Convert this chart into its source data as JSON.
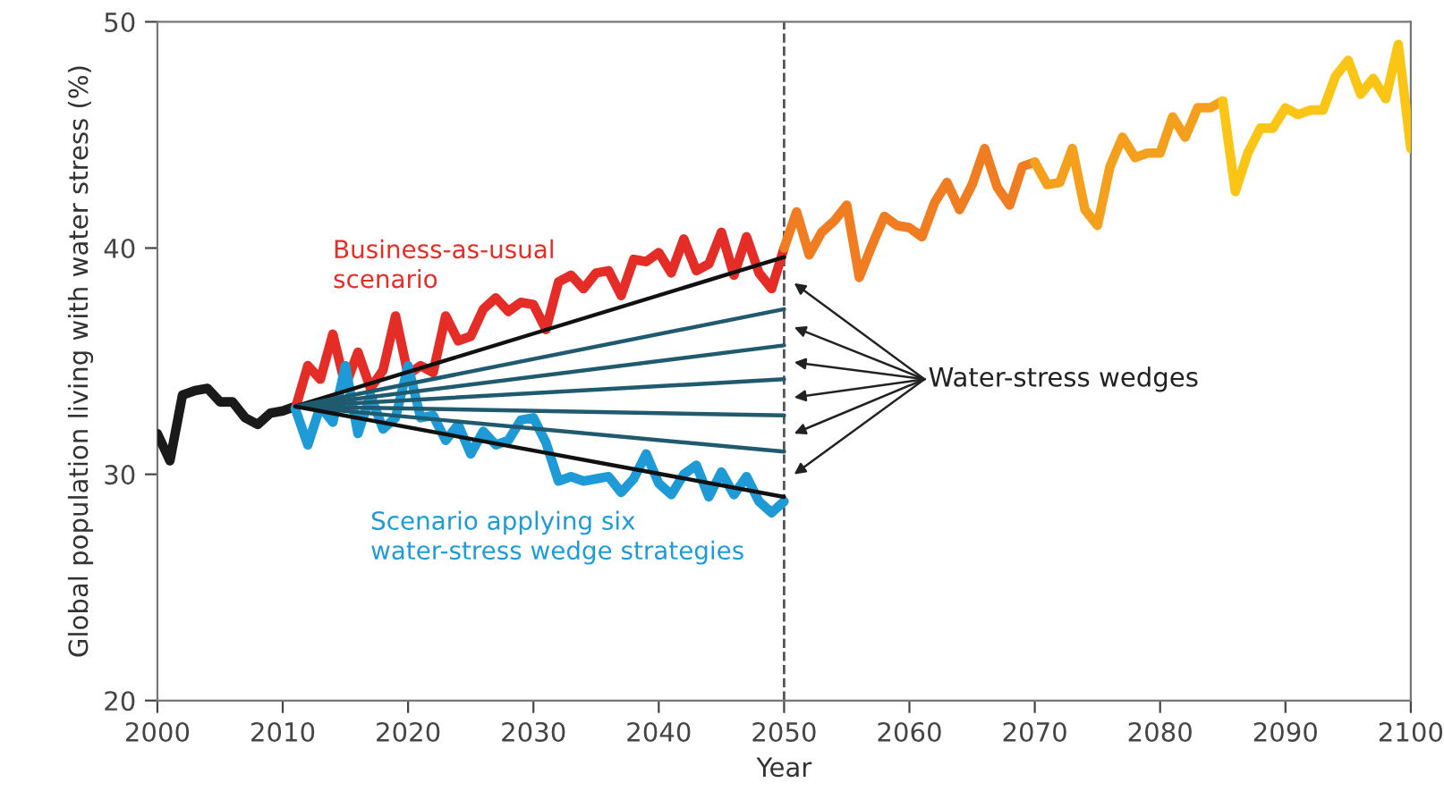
{
  "chart_data": {
    "type": "line",
    "xlabel": "Year",
    "ylabel": "Global population living with water stress (%)",
    "xlim": [
      2000,
      2100
    ],
    "ylim": [
      20,
      50
    ],
    "xticks": [
      2000,
      2010,
      2020,
      2030,
      2040,
      2050,
      2060,
      2070,
      2080,
      2090,
      2100
    ],
    "yticks": [
      20,
      30,
      40,
      50
    ],
    "grid": false,
    "legend": false,
    "marker": "none",
    "line_style": "solid",
    "ref_lines": [
      {
        "axis": "x",
        "value": 2050,
        "color": "#555555",
        "line_style": "dashed"
      }
    ],
    "annotations": [
      "Water-stress wedges"
    ],
    "series": [
      {
        "color": "#1a1a1a",
        "x": [
          2000,
          2001,
          2002,
          2003,
          2004,
          2005,
          2006,
          2007,
          2008,
          2009,
          2010,
          2011
        ],
        "values": [
          31.8,
          30.6,
          33.5,
          33.7,
          33.8,
          33.2,
          33.2,
          32.5,
          32.2,
          32.7,
          32.8,
          33.0
        ]
      },
      {
        "name": "Business-as-usual\nscenario",
        "color": "#e52d27",
        "x": [
          2011,
          2012,
          2013,
          2014,
          2015,
          2016,
          2017,
          2018,
          2019,
          2020,
          2021,
          2022,
          2023,
          2024,
          2025,
          2026,
          2027,
          2028,
          2029,
          2030,
          2031,
          2032,
          2033,
          2034,
          2035,
          2036,
          2037,
          2038,
          2039,
          2040,
          2041,
          2042,
          2043,
          2044,
          2045,
          2046,
          2047,
          2048,
          2049,
          2050
        ],
        "values": [
          32.9,
          34.8,
          34.2,
          36.2,
          33.9,
          35.4,
          33.8,
          34.6,
          37.0,
          34.4,
          34.8,
          34.5,
          37.0,
          35.9,
          36.1,
          37.3,
          37.8,
          37.2,
          37.6,
          37.5,
          36.4,
          38.5,
          38.8,
          38.2,
          38.9,
          39.0,
          37.9,
          39.5,
          39.4,
          39.8,
          38.9,
          40.4,
          39.0,
          39.3,
          40.7,
          38.8,
          40.5,
          38.9,
          38.2,
          40.0
        ]
      },
      {
        "color": "#f07d22",
        "x": [
          2050,
          2051,
          2052,
          2053,
          2054,
          2055,
          2056,
          2057,
          2058,
          2059,
          2060,
          2061,
          2062,
          2063,
          2064,
          2065,
          2066,
          2067,
          2068,
          2069,
          2070
        ],
        "values": [
          40.0,
          41.6,
          39.7,
          40.7,
          41.2,
          41.9,
          38.7,
          40.1,
          41.4,
          41.0,
          40.9,
          40.5,
          42.0,
          42.9,
          41.7,
          42.8,
          44.4,
          42.7,
          41.9,
          43.6,
          43.8
        ]
      },
      {
        "color": "#f5a01d",
        "x": [
          2070,
          2071,
          2072,
          2073,
          2074,
          2075,
          2076,
          2077,
          2078,
          2079,
          2080,
          2081,
          2082,
          2083,
          2084,
          2085
        ],
        "values": [
          43.8,
          42.8,
          42.9,
          44.4,
          41.7,
          41.0,
          43.6,
          44.9,
          44.0,
          44.2,
          44.2,
          45.8,
          44.9,
          46.2,
          46.2,
          46.5
        ]
      },
      {
        "color": "#fbc515",
        "x": [
          2085,
          2086,
          2087,
          2088,
          2089,
          2090,
          2091,
          2092,
          2093,
          2094,
          2095,
          2096,
          2097,
          2098,
          2099,
          2100
        ],
        "values": [
          46.5,
          42.5,
          44.2,
          45.3,
          45.3,
          46.2,
          45.9,
          46.1,
          46.1,
          47.6,
          48.3,
          46.8,
          47.5,
          46.6,
          49.0,
          44.4
        ]
      },
      {
        "name": "Scenario applying six\nwater-stress wedge strategies",
        "color": "#1e9bd7",
        "x": [
          2011,
          2012,
          2013,
          2014,
          2015,
          2016,
          2017,
          2018,
          2019,
          2020,
          2021,
          2022,
          2023,
          2024,
          2025,
          2026,
          2027,
          2028,
          2029,
          2030,
          2031,
          2032,
          2033,
          2034,
          2035,
          2036,
          2037,
          2038,
          2039,
          2040,
          2041,
          2042,
          2043,
          2044,
          2045,
          2046,
          2047,
          2048,
          2049,
          2050
        ],
        "values": [
          32.9,
          31.3,
          33.0,
          32.3,
          34.8,
          31.8,
          33.5,
          32.0,
          32.5,
          34.8,
          32.5,
          32.6,
          31.5,
          32.2,
          30.9,
          31.9,
          31.3,
          31.5,
          32.4,
          32.5,
          31.4,
          29.7,
          29.9,
          29.7,
          29.8,
          29.9,
          29.2,
          29.8,
          30.9,
          29.6,
          29.1,
          30.0,
          30.4,
          29.0,
          30.1,
          29.1,
          29.9,
          28.8,
          28.3,
          28.8
        ]
      },
      {
        "color": "#111111",
        "x": [
          2011,
          2050
        ],
        "values": [
          33.0,
          39.6
        ]
      },
      {
        "color": "#1f5a6e",
        "x": [
          2011,
          2050
        ],
        "values": [
          33.0,
          37.3
        ]
      },
      {
        "color": "#1f5a6e",
        "x": [
          2011,
          2050
        ],
        "values": [
          33.0,
          35.7
        ]
      },
      {
        "color": "#1f5a6e",
        "x": [
          2011,
          2050
        ],
        "values": [
          33.0,
          34.2
        ]
      },
      {
        "color": "#1f5a6e",
        "x": [
          2011,
          2050
        ],
        "values": [
          33.0,
          32.6
        ]
      },
      {
        "color": "#1f5a6e",
        "x": [
          2011,
          2050
        ],
        "values": [
          33.0,
          31.0
        ]
      },
      {
        "color": "#111111",
        "x": [
          2011,
          2050
        ],
        "values": [
          33.0,
          29.0
        ]
      }
    ]
  }
}
